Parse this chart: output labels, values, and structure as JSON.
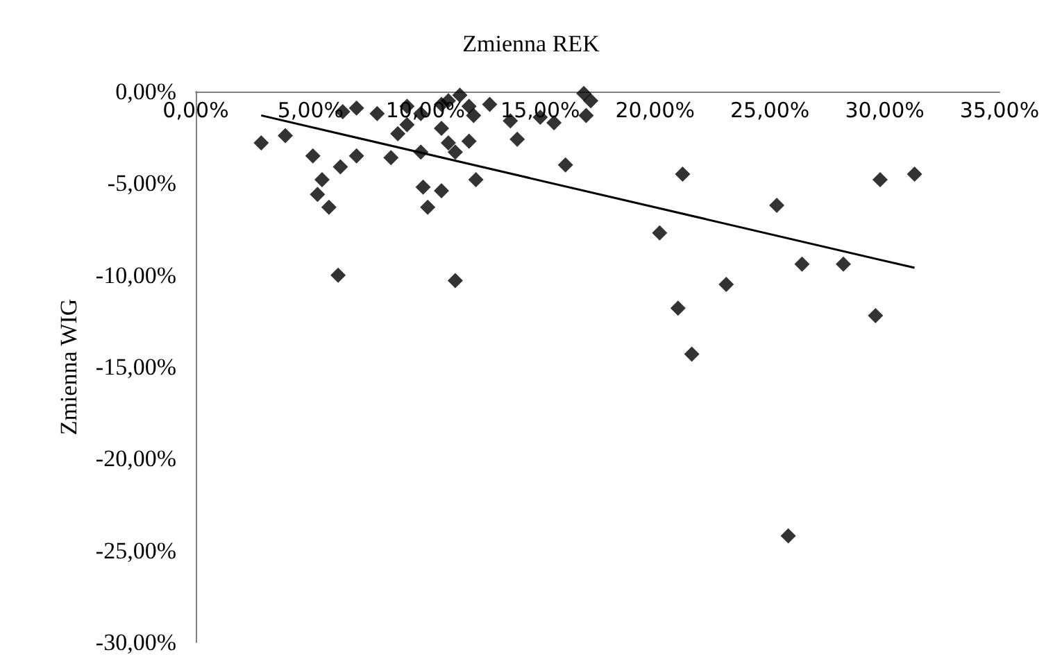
{
  "chart_data": {
    "type": "scatter",
    "title": "Zmienna REK",
    "ylabel": "Zmienna WIG",
    "xlim": [
      0,
      35
    ],
    "ylim": [
      -30,
      0
    ],
    "xticks": [
      {
        "value": 0,
        "label": "0,00%"
      },
      {
        "value": 5,
        "label": "5,00%"
      },
      {
        "value": 10,
        "label": "10,00%"
      },
      {
        "value": 15,
        "label": "15,00%"
      },
      {
        "value": 20,
        "label": "20,00%"
      },
      {
        "value": 25,
        "label": "25,00%"
      },
      {
        "value": 30,
        "label": "30,00%"
      },
      {
        "value": 35,
        "label": "35,00%"
      }
    ],
    "yticks": [
      {
        "value": 0,
        "label": "0,00%"
      },
      {
        "value": -5,
        "label": "-5,00%"
      },
      {
        "value": -10,
        "label": "-10,00%"
      },
      {
        "value": -15,
        "label": "-15,00%"
      },
      {
        "value": -20,
        "label": "-20,00%"
      },
      {
        "value": -25,
        "label": "-25,00%"
      },
      {
        "value": -30,
        "label": "-30,00%"
      }
    ],
    "grid": false,
    "series": [
      {
        "color": "#000000",
        "marker": "diamond",
        "x": [
          2.85,
          3.9,
          5.1,
          5.5,
          5.3,
          5.8,
          6.2,
          6.3,
          6.4,
          7.0,
          7.0,
          7.9,
          8.5,
          9.2,
          8.8,
          9.2,
          9.8,
          9.8,
          9.9,
          10.1,
          10.7,
          10.7,
          10.7,
          11.0,
          11.5,
          11.3,
          11.0,
          11.9,
          12.1,
          11.9,
          12.2,
          11.3,
          12.8,
          13.7,
          14.0,
          15.0,
          15.6,
          16.1,
          16.9,
          17.2,
          17.0,
          21.2,
          20.2,
          25.3,
          29.8,
          31.3,
          26.4,
          28.2,
          23.1,
          21.0,
          21.6,
          29.6,
          25.8
        ],
        "values": [
          -2.8,
          -2.4,
          -3.5,
          -4.8,
          -5.6,
          -6.3,
          -10.0,
          -4.1,
          -1.1,
          -0.9,
          -3.5,
          -1.2,
          -3.6,
          -1.8,
          -2.3,
          -0.8,
          -1.2,
          -3.3,
          -5.2,
          -6.3,
          -5.4,
          -2.0,
          -0.7,
          -0.5,
          -0.2,
          -3.3,
          -2.8,
          -0.8,
          -1.3,
          -2.7,
          -4.8,
          -10.3,
          -0.7,
          -1.6,
          -2.6,
          -1.4,
          -1.7,
          -4.0,
          -0.1,
          -0.5,
          -1.3,
          -4.5,
          -7.7,
          -6.2,
          -4.8,
          -4.5,
          -9.4,
          -9.4,
          -10.5,
          -11.8,
          -14.3,
          -12.2,
          -24.2
        ]
      },
      {
        "type": "line",
        "color": "#000000",
        "marker": "none",
        "line_style": "solid",
        "x": [
          2.85,
          31.3
        ],
        "values": [
          -1.3,
          -9.6
        ]
      }
    ]
  }
}
